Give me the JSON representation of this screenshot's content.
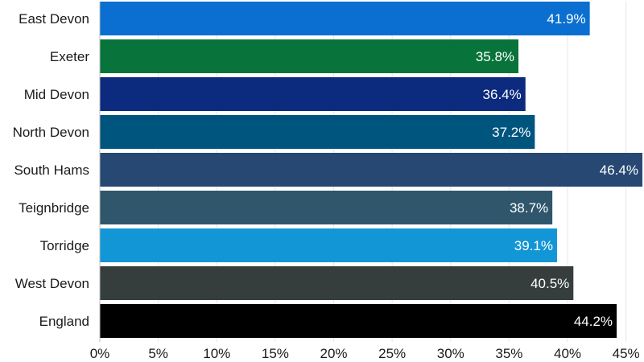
{
  "chart_data": {
    "type": "bar",
    "orientation": "horizontal",
    "categories": [
      "East Devon",
      "Exeter",
      "Mid Devon",
      "North Devon",
      "South Hams",
      "Teignbridge",
      "Torridge",
      "West Devon",
      "England"
    ],
    "values": [
      41.9,
      35.8,
      36.4,
      37.2,
      46.4,
      38.7,
      39.1,
      40.5,
      44.2
    ],
    "data_labels": [
      "41.9%",
      "35.8%",
      "36.4%",
      "37.2%",
      "46.4%",
      "38.7%",
      "39.1%",
      "40.5%",
      "44.2%"
    ],
    "colors": [
      "#0a6fd1",
      "#08743b",
      "#0c2a7e",
      "#00557f",
      "#264872",
      "#30566c",
      "#1396d6",
      "#353e3c",
      "#000000"
    ],
    "xlim": [
      0,
      46.4
    ],
    "xticks": [
      0,
      5,
      10,
      15,
      20,
      25,
      30,
      35,
      40,
      45
    ],
    "xtick_labels": [
      "0%",
      "5%",
      "10%",
      "15%",
      "20%",
      "25%",
      "30%",
      "35%",
      "40%",
      "45%"
    ],
    "grid": "vertical",
    "legend": "none"
  }
}
